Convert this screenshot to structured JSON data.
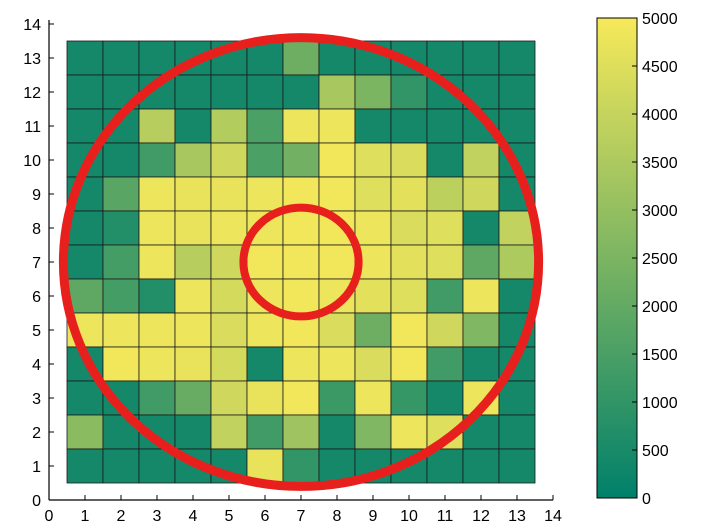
{
  "chart_data": {
    "type": "heatmap",
    "title": "",
    "xlabel": "",
    "ylabel": "",
    "xlim": [
      0,
      14
    ],
    "ylim": [
      0,
      14
    ],
    "x_ticks": [
      "0",
      "1",
      "2",
      "3",
      "4",
      "5",
      "6",
      "7",
      "8",
      "9",
      "10",
      "11",
      "12",
      "13",
      "14"
    ],
    "y_ticks": [
      "0",
      "1",
      "2",
      "3",
      "4",
      "5",
      "6",
      "7",
      "8",
      "9",
      "10",
      "11",
      "12",
      "13",
      "14"
    ],
    "cell_x_centers": [
      1,
      2,
      3,
      4,
      5,
      6,
      7,
      8,
      9,
      10,
      11,
      12,
      13
    ],
    "cell_y_centers": [
      1,
      2,
      3,
      4,
      5,
      6,
      7,
      8,
      9,
      10,
      11,
      12,
      13
    ],
    "grid": false,
    "colorbar": {
      "range": [
        0,
        5000
      ],
      "ticks": [
        "0",
        "500",
        "1000",
        "1500",
        "2000",
        "2500",
        "3000",
        "3500",
        "4000",
        "4500",
        "5000"
      ],
      "colors": [
        "#00806a",
        "#f7e95a"
      ]
    },
    "values_top_to_bottom": [
      [
        400,
        400,
        400,
        400,
        400,
        400,
        2200,
        400,
        400,
        400,
        400,
        400,
        400
      ],
      [
        400,
        400,
        400,
        400,
        400,
        400,
        400,
        3400,
        2500,
        1000,
        400,
        400,
        400
      ],
      [
        400,
        400,
        3700,
        400,
        3600,
        1500,
        4800,
        4800,
        400,
        400,
        400,
        400,
        400
      ],
      [
        400,
        400,
        1300,
        3400,
        4200,
        1500,
        2300,
        4900,
        4500,
        4400,
        400,
        3900,
        400
      ],
      [
        400,
        1800,
        4800,
        4700,
        4700,
        4800,
        4900,
        4900,
        4500,
        4600,
        3800,
        4200,
        400
      ],
      [
        400,
        700,
        4800,
        4700,
        4800,
        4800,
        4900,
        4900,
        4800,
        4400,
        4500,
        400,
        3900
      ],
      [
        400,
        1400,
        4800,
        3700,
        4200,
        4900,
        4900,
        4900,
        4800,
        4600,
        4500,
        1900,
        3500
      ],
      [
        1900,
        1400,
        700,
        4800,
        4300,
        4800,
        4900,
        4800,
        4600,
        4500,
        1300,
        4800,
        400
      ],
      [
        4800,
        4800,
        4800,
        4800,
        4400,
        4800,
        4900,
        4400,
        2200,
        4900,
        4200,
        2600,
        400
      ],
      [
        400,
        4900,
        4800,
        4700,
        4300,
        400,
        4800,
        4800,
        4400,
        4900,
        1300,
        400,
        400
      ],
      [
        400,
        400,
        1300,
        2100,
        4200,
        4700,
        4900,
        1200,
        4800,
        1100,
        400,
        4800,
        400
      ],
      [
        2800,
        400,
        400,
        400,
        3900,
        1300,
        3200,
        400,
        2600,
        4800,
        4500,
        400,
        400
      ],
      [
        400,
        400,
        400,
        400,
        400,
        4700,
        1000,
        400,
        400,
        400,
        400,
        400,
        400
      ]
    ],
    "annotations": [
      {
        "shape": "circle",
        "center": [
          7,
          7
        ],
        "radius": 6.6,
        "color": "#e8201d"
      },
      {
        "shape": "circle",
        "center": [
          7,
          7
        ],
        "radius": 1.6,
        "color": "#e8201d"
      }
    ]
  }
}
